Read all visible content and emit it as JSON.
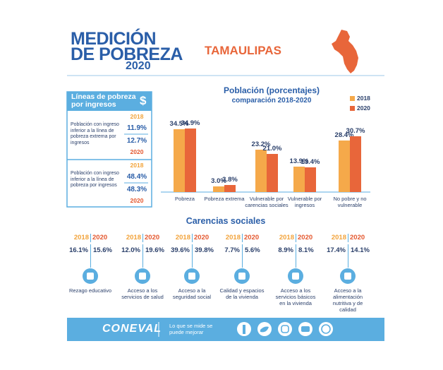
{
  "header": {
    "title_line1": "MEDICIÓN",
    "title_line2": "DE POBREZA",
    "year": "2020",
    "state": "TAMAULIPAS"
  },
  "poverty_lines": {
    "title": "Líneas de pobreza por ingresos",
    "icon": "$",
    "rows": [
      {
        "year_a": "2018",
        "label": "Población con ingreso inferior a la línea de pobreza extrema por ingresos",
        "value_a": "11.9%",
        "value_b": "12.7%",
        "year_b": "2020"
      },
      {
        "year_a": "2018",
        "label": "Población con ingreso inferior a la línea de pobreza por ingresos",
        "value_a": "48.4%",
        "value_b": "48.3%",
        "year_b": "2020"
      }
    ]
  },
  "chart_data": {
    "type": "bar",
    "title": "Población (porcentajes)",
    "subtitle": "comparación 2018-2020",
    "categories": [
      "Pobreza",
      "Pobreza extrema",
      "Vulnerable por carencias sociales",
      "Vulnerable por ingresos",
      "No pobre y no vulnerable"
    ],
    "series": [
      {
        "name": "2018",
        "color": "#f5a94a",
        "values": [
          34.5,
          3.0,
          23.2,
          13.9,
          28.4
        ],
        "value_labels": [
          "34.5%",
          "3.0%",
          "23.2%",
          "13.9%",
          "28.4%"
        ]
      },
      {
        "name": "2020",
        "color": "#e8663a",
        "values": [
          34.9,
          3.8,
          21.0,
          13.4,
          30.7
        ],
        "value_labels": [
          "34.9%",
          "3.8%",
          "21.0%",
          "13.4%",
          "30.7%"
        ]
      }
    ],
    "legend": "top-right"
  },
  "carencias": {
    "title": "Carencias sociales",
    "items": [
      {
        "year_a": "2018",
        "year_b": "2020",
        "value_a": "16.1%",
        "value_b": "15.6%",
        "label": "Rezago educativo"
      },
      {
        "year_a": "2018",
        "year_b": "2020",
        "value_a": "12.0%",
        "value_b": "19.6%",
        "label": "Acceso a los servicios de salud"
      },
      {
        "year_a": "2018",
        "year_b": "2020",
        "value_a": "39.6%",
        "value_b": "39.8%",
        "label": "Acceso a la seguridad social"
      },
      {
        "year_a": "2018",
        "year_b": "2020",
        "value_a": "7.7%",
        "value_b": "5.6%",
        "label": "Calidad y espacios de la vivienda"
      },
      {
        "year_a": "2018",
        "year_b": "2020",
        "value_a": "8.9%",
        "value_b": "8.1%",
        "label": "Acceso a los servicios básicos en la vivienda"
      },
      {
        "year_a": "2018",
        "year_b": "2020",
        "value_a": "17.4%",
        "value_b": "14.1%",
        "label": "Acceso a la alimentación nutritiva y de calidad"
      }
    ]
  },
  "footer": {
    "logo": "CONEVAL",
    "slogan": "Lo que se mide se puede mejorar"
  }
}
